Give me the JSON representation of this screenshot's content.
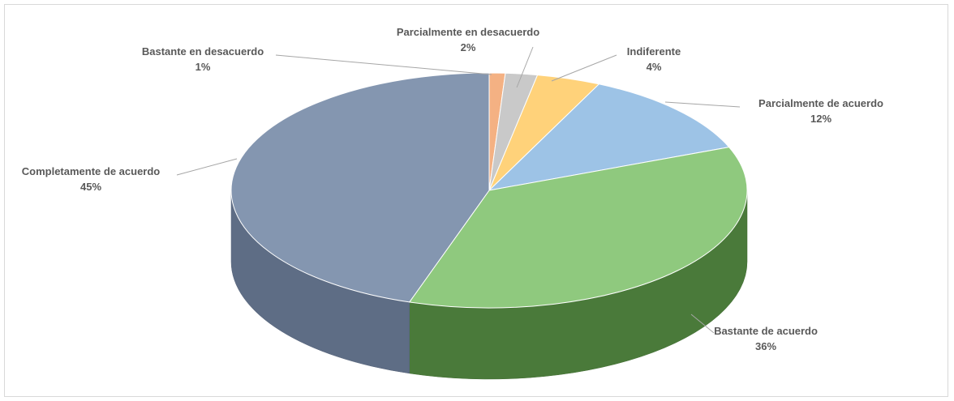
{
  "chart_data": {
    "type": "pie",
    "style": "3d",
    "slices": [
      {
        "label": "Bastante en desacuerdo",
        "value": 1,
        "value_label": "1%",
        "color": "#F4B183"
      },
      {
        "label": "Parcialmente en desacuerdo",
        "value": 2,
        "value_label": "2%",
        "color": "#C9C9C9"
      },
      {
        "label": "Indiferente",
        "value": 4,
        "value_label": "4%",
        "color": "#FFD27A"
      },
      {
        "label": "Parcialmente de acuerdo",
        "value": 12,
        "value_label": "12%",
        "color": "#9DC3E6"
      },
      {
        "label": "Bastante de acuerdo",
        "value": 36,
        "value_label": "36%",
        "color": "#8FC97E"
      },
      {
        "label": "Completamente de acuerdo",
        "value": 45,
        "value_label": "45%",
        "color": "#8496B0"
      }
    ],
    "side_colors": {
      "Bastante de acuerdo": "#4A7A3A",
      "Completamente de acuerdo": "#5E6D85"
    },
    "legend": "none"
  }
}
